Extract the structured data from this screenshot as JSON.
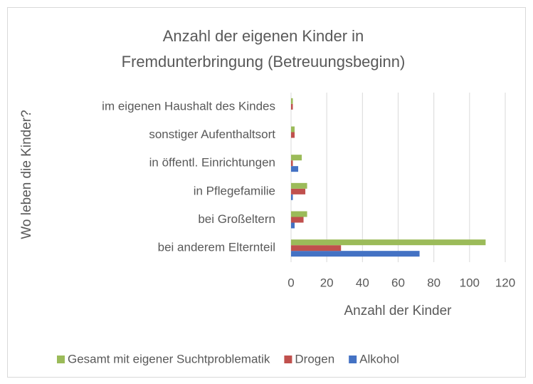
{
  "chart_data": {
    "type": "bar",
    "orientation": "horizontal",
    "title": [
      "Anzahl der eigenen Kinder in",
      "Fremdunterbringung (Betreuungsbeginn)"
    ],
    "x_label": "Anzahl der Kinder",
    "y_label": "Wo leben die Kinder?",
    "categories": [
      "bei anderem Elternteil",
      "bei Großeltern",
      "in Pflegefamilie",
      "in öffentl. Einrichtungen",
      "sonstiger Aufenthaltsort",
      "im eigenen Haushalt des Kindes"
    ],
    "series": [
      {
        "name": "Alkohol",
        "color": "#4472c4",
        "values": [
          72,
          2,
          1,
          4,
          0,
          0
        ]
      },
      {
        "name": "Drogen",
        "color": "#c0504d",
        "values": [
          28,
          7,
          8,
          1,
          2,
          1
        ]
      },
      {
        "name": "Gesamt mit eigener Suchtproblematik",
        "color": "#9bbb59",
        "values": [
          109,
          9,
          9,
          6,
          2,
          1
        ]
      }
    ],
    "xlim": [
      0,
      120
    ],
    "xticks": [
      0,
      20,
      40,
      60,
      80,
      100,
      120
    ],
    "grid": true,
    "legend": "bottom"
  }
}
